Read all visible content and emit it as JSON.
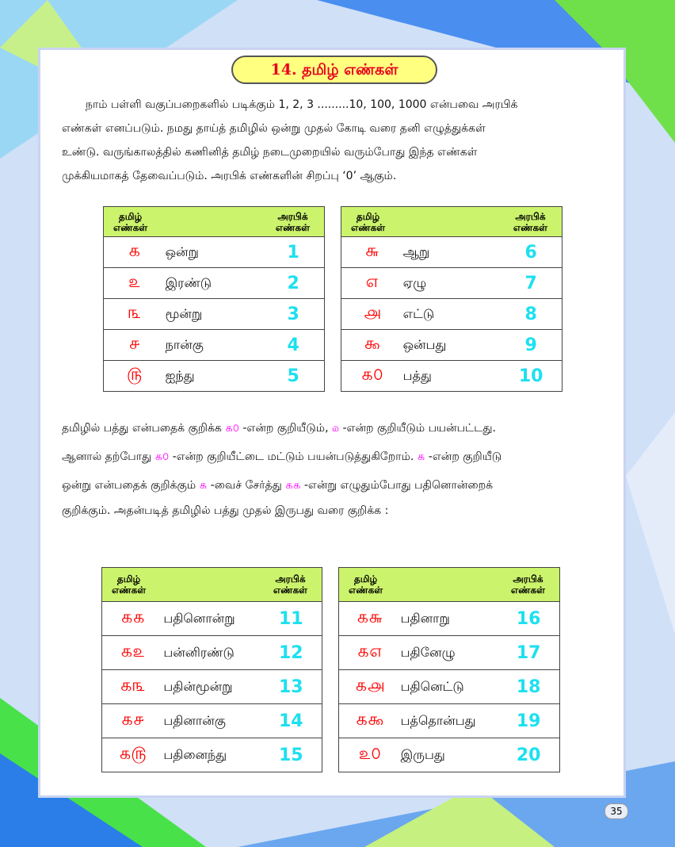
{
  "title": "14. தமிழ் எண்கள்",
  "intro": [
    "நாம் பள்ளி வகுப்பறைகளில் படிக்கும் 1, 2, 3 .........10, 100, 1000 என்பவை அரபிக்",
    "எண்கள் எனப்படும். நமது தாய்த் தமிழில் ஒன்று முதல் கோடி வரை தனி எழுத்துக்கள்",
    "உண்டு. வருங்காலத்தில் கணினித் தமிழ் நடைமுறையில் வரும்போது இந்த எண்கள்",
    "முக்கியமாகத் தேவைப்படும். அரபிக் எண்களின் சிறப்பு ‘0’ ஆகும்."
  ],
  "header": {
    "tamil_1": "தமிழ்",
    "tamil_2": "எண்கள்",
    "arabic_1": "அரபிக்",
    "arabic_2": "எண்கள்"
  },
  "table1": [
    [
      "௧",
      "ஒன்று",
      "1"
    ],
    [
      "௨",
      "இரண்டு",
      "2"
    ],
    [
      "௩",
      "மூன்று",
      "3"
    ],
    [
      "௪",
      "நான்கு",
      "4"
    ],
    [
      "௫",
      "ஐந்து",
      "5"
    ]
  ],
  "table2": [
    [
      "௬",
      "ஆறு",
      "6"
    ],
    [
      "௭",
      "ஏழு",
      "7"
    ],
    [
      "௮",
      "எட்டு",
      "8"
    ],
    [
      "௯",
      "ஒன்பது",
      "9"
    ],
    [
      "௧௦",
      "பத்து",
      "10"
    ]
  ],
  "para2": {
    "l1a": "தமிழில் பத்து என்பதைக் குறிக்க ",
    "l1b": "௧௦",
    "l1c": " -என்ற குறியீடும், ",
    "l1d": "௰",
    "l1e": " -என்ற குறியீடும் பயன்பட்டது.",
    "l2a": "ஆனால் தற்போது ",
    "l2b": "௧௦",
    "l2c": " -என்ற குறியீட்டை மட்டும் பயன்படுத்துகிறோம். ",
    "l2d": "௧",
    "l2e": " -என்ற குறியீடு",
    "l3a": "ஒன்று என்பதைக் குறிக்கும் ",
    "l3b": "௧",
    "l3c": " -வைச் சேர்த்து ",
    "l3d": "௧௧",
    "l3e": " -என்று எழுதும்போது பதினொன்றைக்",
    "l4": "குறிக்கும். அதன்படித் தமிழில் பத்து முதல் இருபது வரை குறிக்க :"
  },
  "table3": [
    [
      "௧௧",
      "பதினொன்று",
      "11"
    ],
    [
      "௧௨",
      "பன்னிரண்டு",
      "12"
    ],
    [
      "௧௩",
      "பதின்மூன்று",
      "13"
    ],
    [
      "௧௪",
      "பதினான்கு",
      "14"
    ],
    [
      "௧௫",
      "பதினைந்து",
      "15"
    ]
  ],
  "table4": [
    [
      "௧௬",
      "பதினாறு",
      "16"
    ],
    [
      "௧௭",
      "பதினேழு",
      "17"
    ],
    [
      "௧௮",
      "பதினெட்டு",
      "18"
    ],
    [
      "௧௯",
      "பத்தொன்பது",
      "19"
    ],
    [
      "௨௦",
      "இருபது",
      "20"
    ]
  ],
  "page_number": "35",
  "colors": {
    "tamil_numeral": "#ff0000",
    "arabic_numeral": "#1de0f0",
    "header_bg": "#ccf36c",
    "title_bg": "#ffff80",
    "title_text": "#e8001c",
    "inline_numeral": "#ff00ff"
  }
}
